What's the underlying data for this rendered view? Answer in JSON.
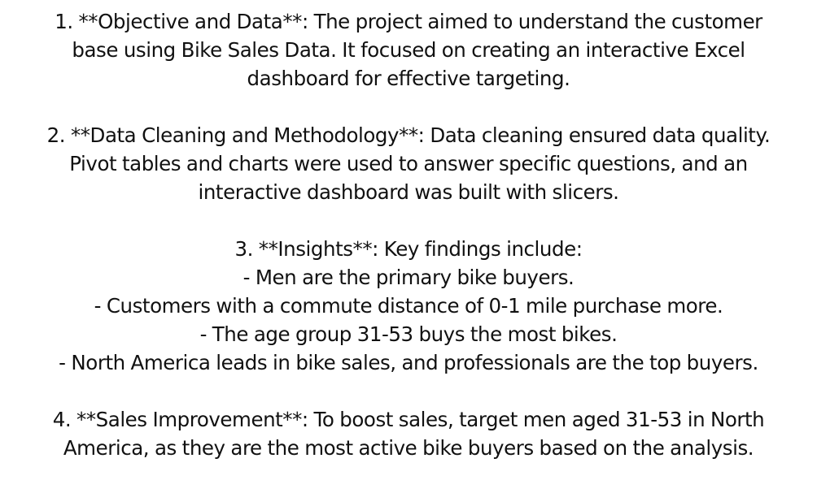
{
  "paragraphs": [
    {
      "lines": [
        "1. **Objective and Data**: The project aimed to understand the customer",
        "base using Bike Sales Data. It focused on creating an interactive Excel",
        "dashboard for effective targeting."
      ]
    },
    {
      "lines": [
        "2. **Data Cleaning and Methodology**: Data cleaning ensured data quality.",
        "Pivot tables and charts were used to answer specific questions, and an",
        "interactive dashboard was built with slicers."
      ]
    },
    {
      "lines": [
        "3. **Insights**: Key findings include:",
        "- Men are the primary bike buyers.",
        "- Customers with a commute distance of 0-1 mile purchase more.",
        "- The age group 31-53 buys the most bikes.",
        "- North America leads in bike sales, and professionals are the top buyers."
      ]
    },
    {
      "lines": [
        "4. **Sales Improvement**: To boost sales, target men aged 31-53 in North",
        "America, as they are the most active bike buyers based on the analysis."
      ]
    }
  ]
}
